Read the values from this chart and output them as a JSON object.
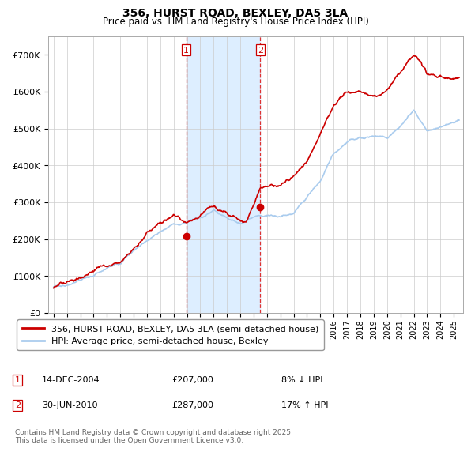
{
  "title": "356, HURST ROAD, BEXLEY, DA5 3LA",
  "subtitle": "Price paid vs. HM Land Registry's House Price Index (HPI)",
  "bg_color": "#ffffff",
  "plot_bg_color": "#ffffff",
  "grid_color": "#cccccc",
  "hpi_color": "#aaccee",
  "price_color": "#cc0000",
  "sale1_date": "14-DEC-2004",
  "sale1_price": 207000,
  "sale1_pct": "8% ↓ HPI",
  "sale1_year": 2004.95,
  "sale2_date": "30-JUN-2010",
  "sale2_price": 287000,
  "sale2_pct": "17% ↑ HPI",
  "sale2_year": 2010.5,
  "ylim_max": 750000,
  "ylim_min": 0,
  "shade_color": "#ddeeff",
  "legend_label_price": "356, HURST ROAD, BEXLEY, DA5 3LA (semi-detached house)",
  "legend_label_hpi": "HPI: Average price, semi-detached house, Bexley",
  "footnote": "Contains HM Land Registry data © Crown copyright and database right 2025.\nThis data is licensed under the Open Government Licence v3.0."
}
